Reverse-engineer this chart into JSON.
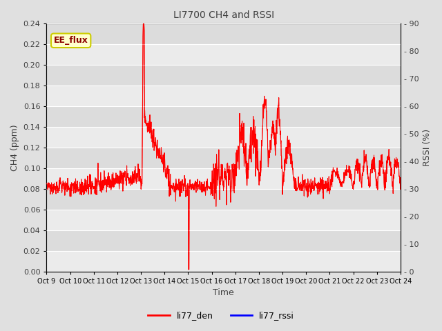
{
  "title": "LI7700 CH4 and RSSI",
  "xlabel": "Time",
  "ylabel_left": "CH4 (ppm)",
  "ylabel_right": "RSSI (%)",
  "legend_label": "EE_flux",
  "series": [
    "li77_den",
    "li77_rssi"
  ],
  "colors": [
    "red",
    "blue"
  ],
  "x_tick_labels": [
    "Oct 9",
    "Oct 10",
    "Oct 11",
    "Oct 12",
    "Oct 13",
    "Oct 14",
    "Oct 15",
    "Oct 16",
    "Oct 17",
    "Oct 18",
    "Oct 19",
    "Oct 20",
    "Oct 21",
    "Oct 22",
    "Oct 23",
    "Oct 24"
  ],
  "ylim_left": [
    0.0,
    0.24
  ],
  "ylim_right": [
    0,
    90
  ],
  "yticks_left": [
    0.0,
    0.02,
    0.04,
    0.06,
    0.08,
    0.1,
    0.12,
    0.14,
    0.16,
    0.18,
    0.2,
    0.22,
    0.24
  ],
  "yticks_right": [
    0,
    10,
    20,
    30,
    40,
    50,
    60,
    70,
    80,
    90
  ],
  "bg_color": "#e0e0e0",
  "plot_bg_light": "#ebebeb",
  "plot_bg_dark": "#dcdcdc",
  "stripe_color_light": "#ebebeb",
  "stripe_color_dark": "#dcdcdc",
  "legend_box_color": "#ffffcc",
  "legend_box_edge": "#cccc00",
  "title_color": "#404040",
  "label_color": "#404040",
  "tick_color": "#404040"
}
